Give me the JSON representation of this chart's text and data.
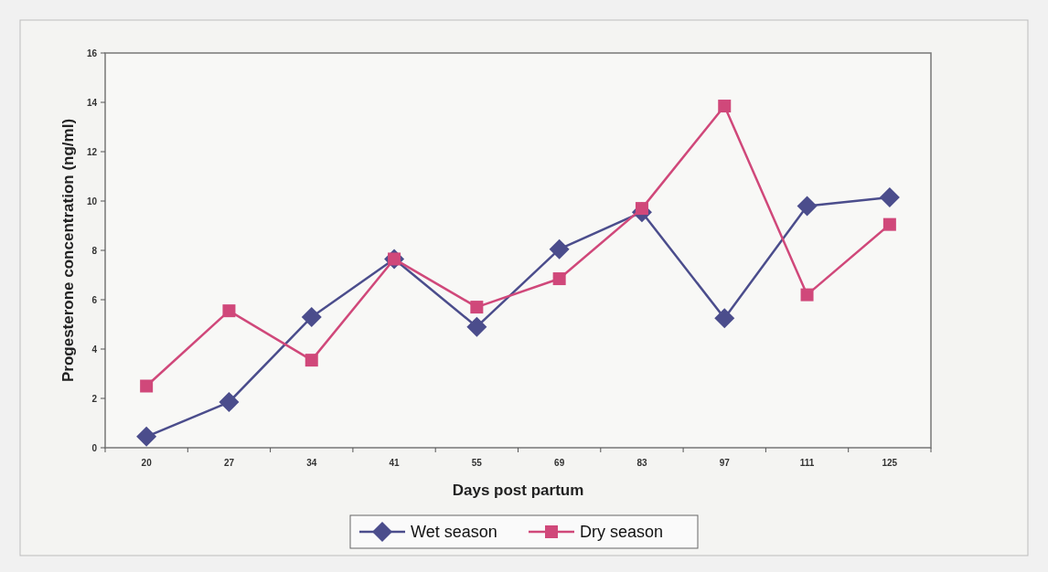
{
  "chart_data": {
    "type": "line",
    "xlabel": "Days post partum",
    "ylabel": "Progesterone concentration (ng/ml)",
    "categories": [
      "20",
      "27",
      "34",
      "41",
      "55",
      "69",
      "83",
      "97",
      "111",
      "125"
    ],
    "series": [
      {
        "name": "Wet season",
        "color": "#4b4d8c",
        "marker": "diamond",
        "values": [
          0.45,
          1.85,
          5.3,
          7.65,
          4.9,
          8.05,
          9.55,
          5.25,
          9.8,
          10.15
        ]
      },
      {
        "name": "Dry season",
        "color": "#d0487a",
        "marker": "square",
        "values": [
          2.5,
          5.55,
          3.55,
          7.65,
          5.7,
          6.85,
          9.7,
          13.85,
          6.2,
          9.05
        ]
      }
    ],
    "ylim": [
      0,
      16
    ],
    "yticks": [
      0,
      2,
      4,
      6,
      8,
      10,
      12,
      14,
      16
    ],
    "grid": false,
    "legend": "bottom"
  }
}
